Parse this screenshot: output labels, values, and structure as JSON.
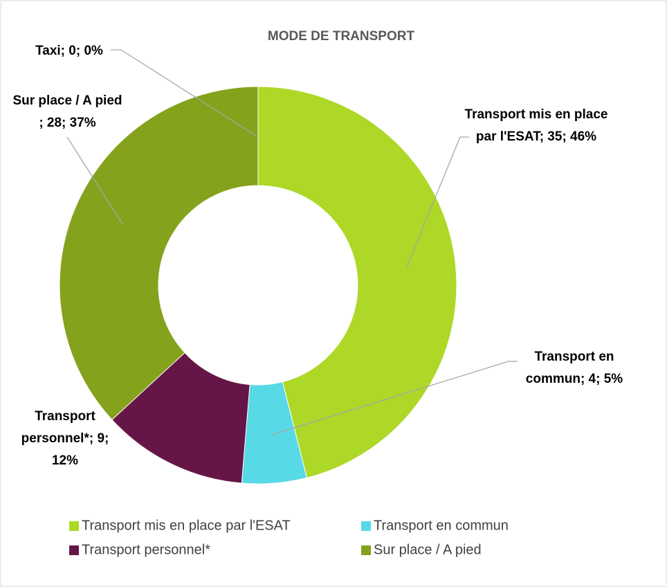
{
  "chart_data": {
    "type": "donut",
    "title": "MODE DE TRANSPORT",
    "categories": [
      "Transport mis en place par l'ESAT",
      "Transport en commun",
      "Transport personnel*",
      "Sur place / A pied",
      "Taxi"
    ],
    "values": [
      35,
      4,
      9,
      28,
      0
    ],
    "value_labels": [
      "Transport mis en place par l'ESAT; 35; 46%",
      "Transport en commun; 4; 5%",
      "Transport personnel*; 9; 12%",
      "Sur place / A pied ; 28; 37%",
      "Taxi; 0; 0%"
    ],
    "colors": [
      "#add827",
      "#57d9e6",
      "#661646",
      "#85a21c"
    ],
    "legend": "bottom"
  }
}
